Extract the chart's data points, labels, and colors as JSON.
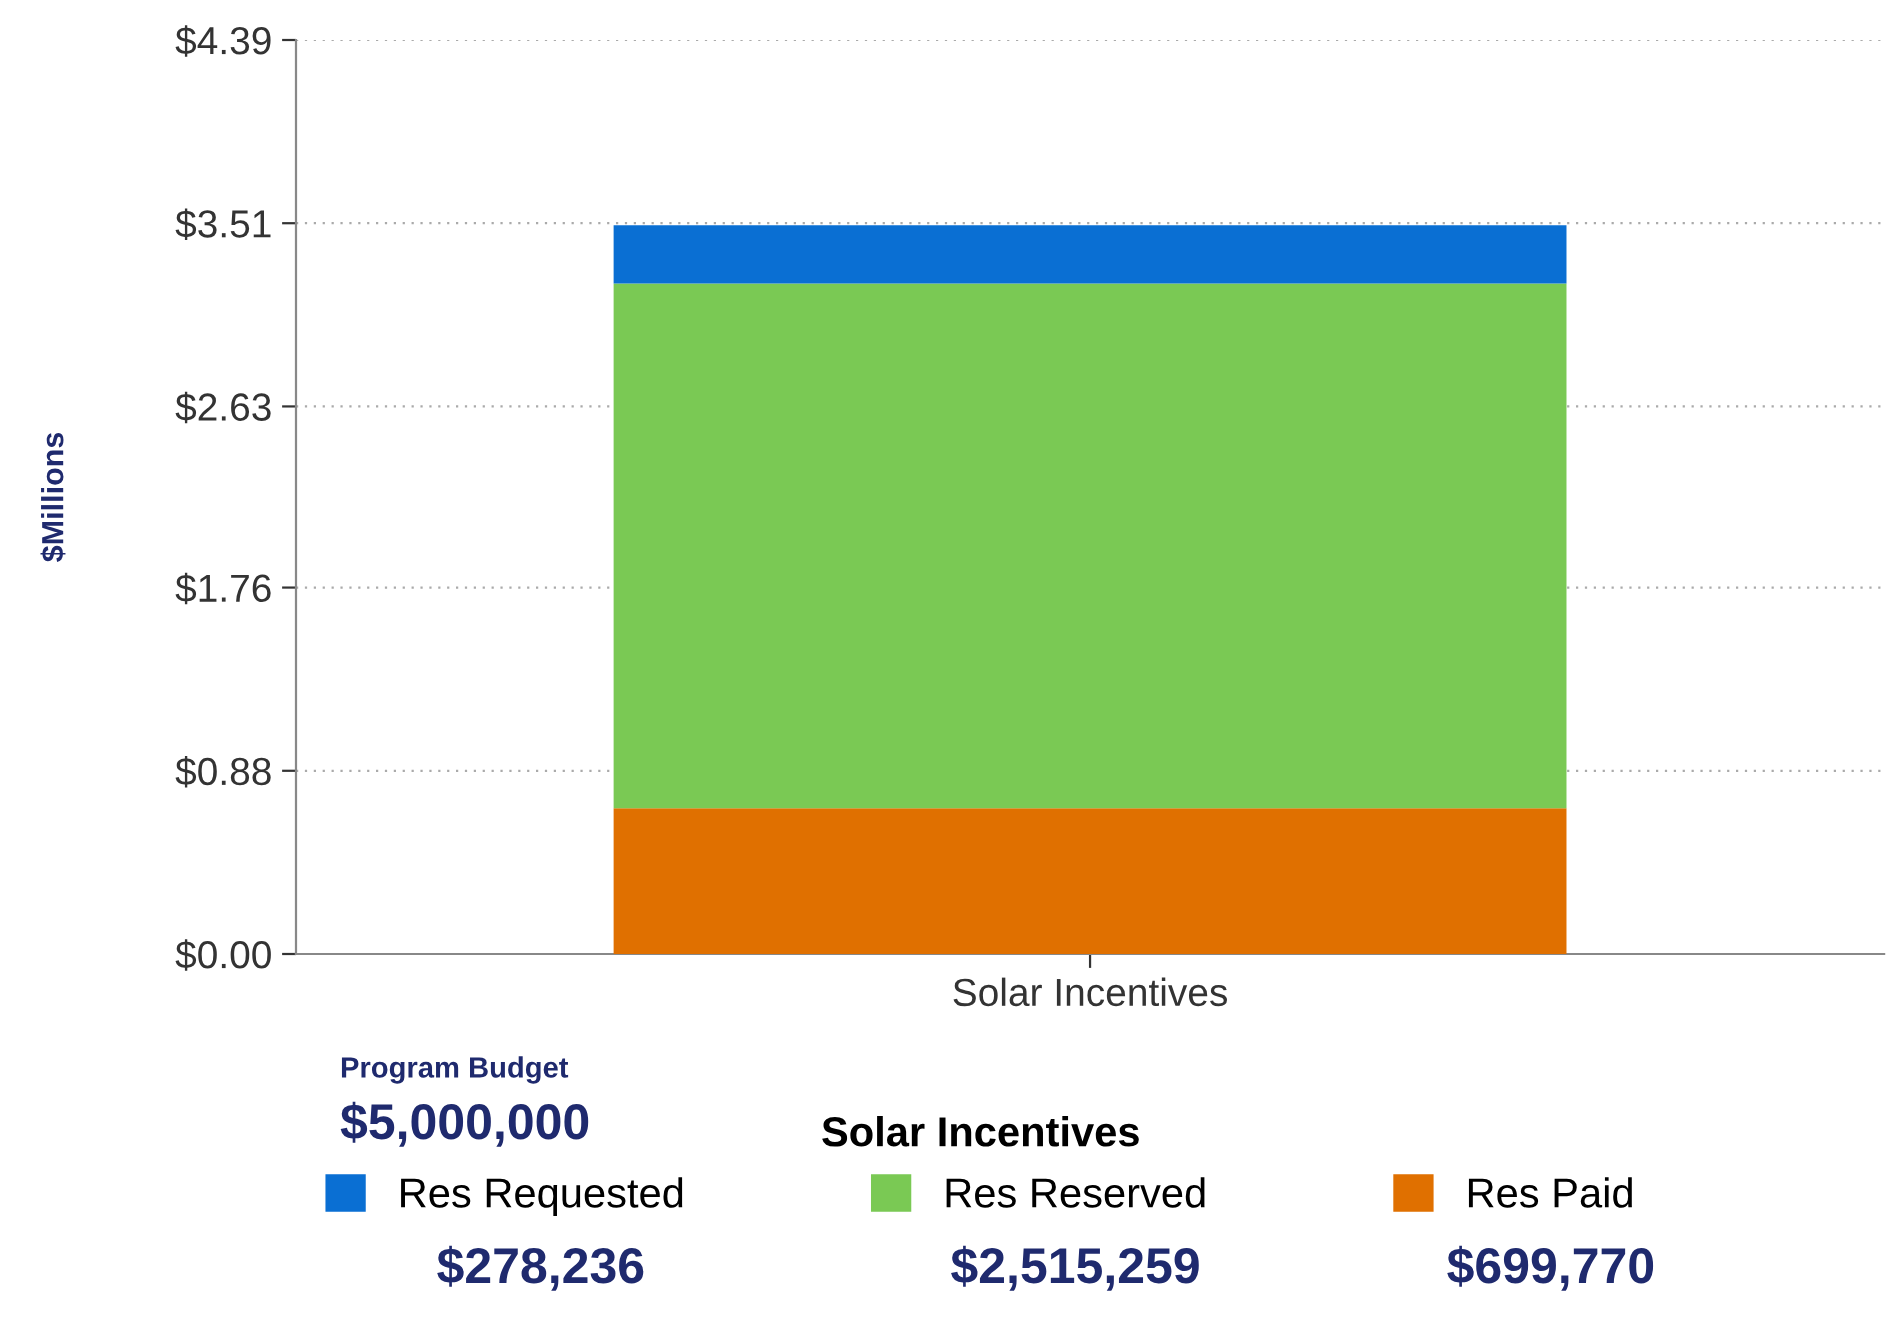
{
  "chart_data": {
    "type": "bar",
    "stacked": true,
    "ylabel": "$Millions",
    "legend_title": "Solar Incentives",
    "categories": [
      "Solar Incentives"
    ],
    "series": [
      {
        "name": "Res Paid",
        "color": "#e07000",
        "values": [
          0.7
        ]
      },
      {
        "name": "Res Reserved",
        "color": "#7ac954",
        "values": [
          2.52
        ]
      },
      {
        "name": "Res Requested",
        "color": "#0a6fd3",
        "values": [
          0.28
        ]
      }
    ],
    "ylim": [
      0,
      4.39
    ],
    "yticks": [
      {
        "value": 0,
        "label": "$0.00"
      },
      {
        "value": 0.88,
        "label": "$0.88"
      },
      {
        "value": 1.76,
        "label": "$1.76"
      },
      {
        "value": 2.63,
        "label": "$2.63"
      },
      {
        "value": 3.51,
        "label": "$3.51"
      },
      {
        "value": 4.39,
        "label": "$4.39"
      }
    ],
    "grid": "y",
    "legend": "bottom",
    "annotations": [
      "Program Budget",
      "$5,000,000",
      "$278,236",
      "$2,515,259",
      "$699,770"
    ]
  }
}
